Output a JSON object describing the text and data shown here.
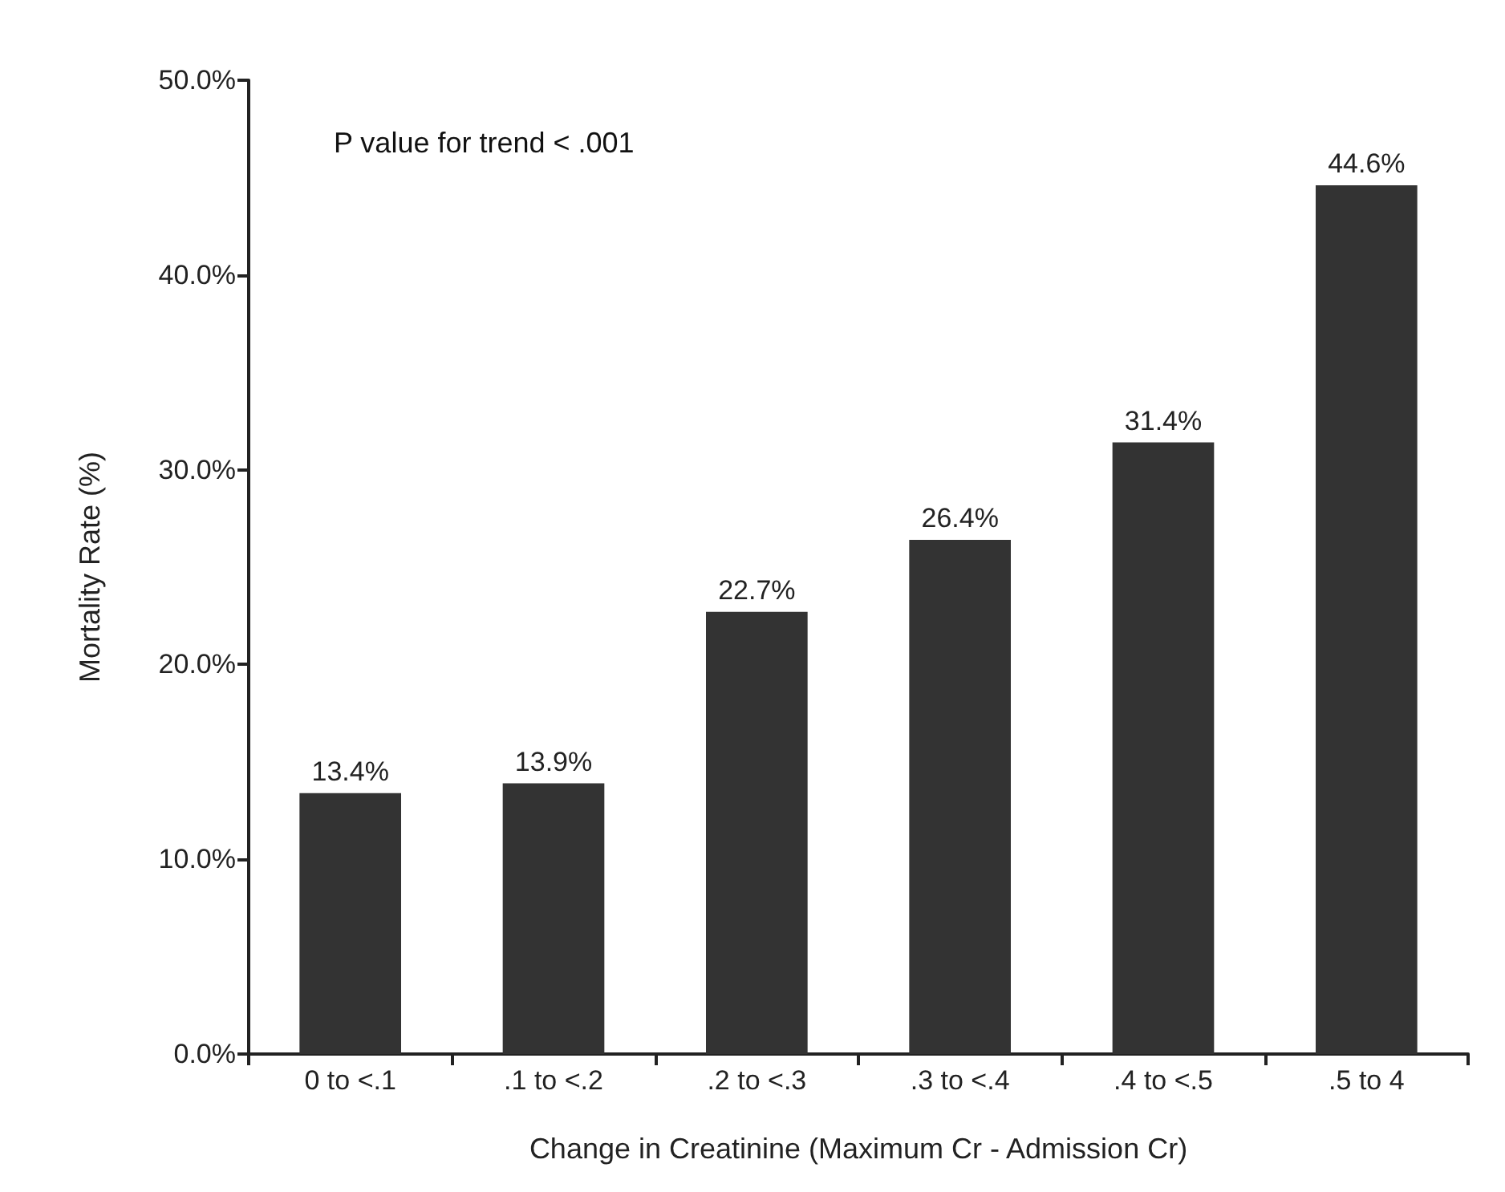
{
  "chart_data": {
    "type": "bar",
    "xlabel": "Change in Creatinine (Maximum Cr - Admission Cr)",
    "ylabel": "Mortality Rate (%)",
    "categories": [
      "0 to <.1",
      ".1 to <.2",
      ".2 to <.3",
      ".3 to <.4",
      ".4 to <.5",
      ".5 to 4"
    ],
    "values": [
      13.4,
      13.9,
      22.7,
      26.4,
      31.4,
      44.6
    ],
    "value_labels": [
      "13.4%",
      "13.9%",
      "22.7%",
      "26.4%",
      "31.4%",
      "44.6%"
    ],
    "color": "#333333",
    "ylim": [
      0,
      50
    ],
    "yticks": [
      {
        "value": 0,
        "label": "0.0%"
      },
      {
        "value": 10,
        "label": "10.0%"
      },
      {
        "value": 20,
        "label": "20.0%"
      },
      {
        "value": 30,
        "label": "30.0%"
      },
      {
        "value": 40,
        "label": "40.0%"
      },
      {
        "value": 50,
        "label": "50.0%"
      }
    ],
    "annotations": [
      "P value for trend < .001"
    ],
    "grid": false
  }
}
